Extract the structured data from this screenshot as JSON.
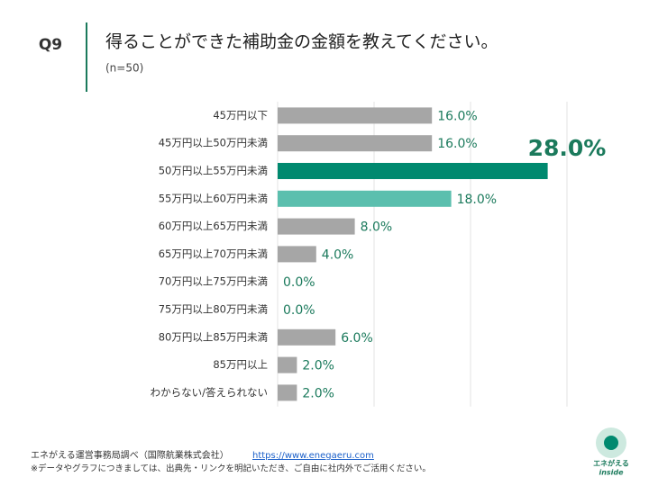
{
  "header": {
    "question": "Q9",
    "title": "得ることができた補助金の金額を教えてください。",
    "note": "(n=50)"
  },
  "chart_data": {
    "type": "bar",
    "orientation": "horizontal",
    "categories": [
      "45万円以下",
      "45万円以上50万円未満",
      "50万円以上55万円未満",
      "55万円以上60万円未満",
      "60万円以上65万円未満",
      "65万円以上70万円未満",
      "70万円以上75万円未満",
      "75万円以上80万円未満",
      "80万円以上85万円未満",
      "85万円以上",
      "わからない/答えられない"
    ],
    "values": [
      16,
      16,
      28,
      18,
      8,
      4,
      0,
      0,
      6,
      2,
      2
    ],
    "value_labels": [
      "16.0%",
      "16.0%",
      "28.0%",
      "18.0%",
      "8.0%",
      "4.0%",
      "0.0%",
      "0.0%",
      "6.0%",
      "2.0%",
      "2.0%"
    ],
    "colors": [
      "#a6a6a6",
      "#a6a6a6",
      "#00896f",
      "#5bbfae",
      "#a6a6a6",
      "#a6a6a6",
      "#a6a6a6",
      "#a6a6a6",
      "#a6a6a6",
      "#a6a6a6",
      "#a6a6a6"
    ],
    "label_color": "#1b7a5c",
    "xlim": [
      0,
      30
    ],
    "xticks": [
      0,
      10,
      20,
      30
    ],
    "grid": true
  },
  "footer": {
    "source": "エネがえる運営事務局調べ（国際航業株式会社）",
    "link": "https://www.enegaeru.com",
    "note": "※データやグラフにつきましては、出典先・リンクを明記いただき、ご自由に社内外でご活用ください。"
  },
  "logo": {
    "name": "エネがえる",
    "sub": "inside"
  }
}
